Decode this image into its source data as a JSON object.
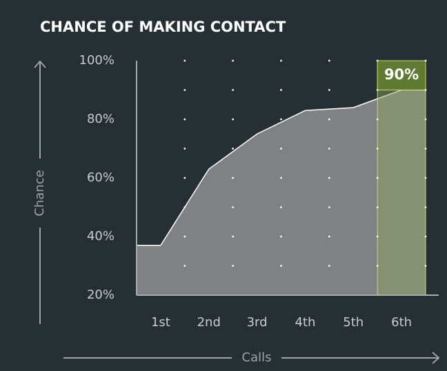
{
  "chart_data": {
    "type": "area",
    "title": "CHANCE OF MAKING CONTACT",
    "x_label": "Calls",
    "y_label": "Chance",
    "categories": [
      "1st",
      "2nd",
      "3rd",
      "4th",
      "5th",
      "6th"
    ],
    "values": [
      37,
      63,
      75,
      83,
      84,
      90
    ],
    "value_labels": [
      null,
      null,
      null,
      null,
      null,
      "90%"
    ],
    "color": "#808184",
    "line_color": "#ffffff",
    "highlight_color": "#8fa35a",
    "ylim": [
      20,
      100
    ],
    "yticks": [
      {
        "value": 20,
        "label": "20%"
      },
      {
        "value": 40,
        "label": "40%"
      },
      {
        "value": 60,
        "label": "60%"
      },
      {
        "value": 80,
        "label": "80%"
      },
      {
        "value": 100,
        "label": "100%"
      }
    ],
    "grid": true
  }
}
